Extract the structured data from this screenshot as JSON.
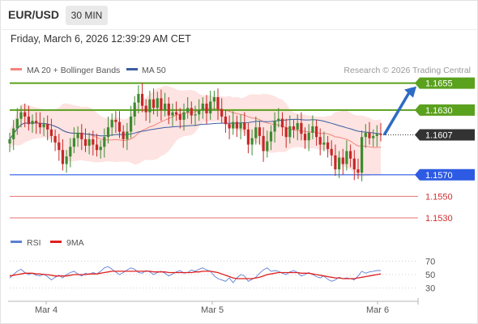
{
  "header": {
    "symbol": "EUR/USD",
    "interval": "30 MIN",
    "datetime": "Friday, March 6, 2026 12:39:29 AM CET"
  },
  "legend": {
    "bollinger_label": "MA 20 + Bollinger Bands",
    "ma50_label": "MA 50",
    "copyright": "Research © 2026 Trading Central",
    "bollinger_color": "#f4847b",
    "ma50_color": "#3a5ea3"
  },
  "rsi_legend": {
    "rsi_label": "RSI",
    "ma9_label": "9MA",
    "rsi_color": "#5b7fd4",
    "ma9_color": "#e02020"
  },
  "colors": {
    "up_candle": "#3d8b2f",
    "down_candle": "#c62828",
    "resistance": "#5aa11e",
    "pivot": "#2d5be3",
    "support": "#e57373",
    "last_price": "#333333",
    "band_fill": "#fde3e1",
    "arrow": "#2d6bc4"
  },
  "chart_data": [
    {
      "type": "candlestick",
      "y_range": [
        1.1518,
        1.1663
      ],
      "x_labels": [
        "Mar 4",
        "Mar 5",
        "Mar 6"
      ],
      "levels": [
        {
          "value": 1.1655,
          "label": "1.1655",
          "kind": "resistance"
        },
        {
          "value": 1.163,
          "label": "1.1630",
          "kind": "resistance"
        },
        {
          "value": 1.1607,
          "label": "1.1607",
          "kind": "last"
        },
        {
          "value": 1.157,
          "label": "1.1570",
          "kind": "pivot"
        },
        {
          "value": 1.155,
          "label": "1.1550",
          "kind": "support"
        },
        {
          "value": 1.153,
          "label": "1.1530",
          "kind": "support"
        }
      ],
      "arrow": {
        "from": 1.1608,
        "to": 1.1652
      },
      "closes": [
        1.1603,
        1.1613,
        1.1622,
        1.1628,
        1.1624,
        1.1617,
        1.162,
        1.1618,
        1.1614,
        1.1617,
        1.1612,
        1.1606,
        1.16,
        1.1593,
        1.158,
        1.1587,
        1.1596,
        1.1604,
        1.1609,
        1.1603,
        1.1597,
        1.1603,
        1.1598,
        1.1593,
        1.1596,
        1.1605,
        1.1614,
        1.1621,
        1.1619,
        1.161,
        1.1603,
        1.161,
        1.1624,
        1.1637,
        1.1645,
        1.1634,
        1.1628,
        1.164,
        1.1632,
        1.1641,
        1.163,
        1.1636,
        1.1625,
        1.1628,
        1.1626,
        1.1621,
        1.1628,
        1.1632,
        1.1625,
        1.1626,
        1.163,
        1.1636,
        1.1627,
        1.1638,
        1.1642,
        1.1631,
        1.1624,
        1.1617,
        1.1613,
        1.1619,
        1.1613,
        1.1618,
        1.1612,
        1.1598,
        1.1604,
        1.1614,
        1.1606,
        1.1592,
        1.1601,
        1.161,
        1.162,
        1.1622,
        1.1614,
        1.1605,
        1.1615,
        1.1612,
        1.1618,
        1.1608,
        1.1602,
        1.1609,
        1.1615,
        1.1605,
        1.1598,
        1.16,
        1.1594,
        1.1588,
        1.1575,
        1.1586,
        1.158,
        1.1592,
        1.1585,
        1.1575,
        1.1572,
        1.1605,
        1.1609,
        1.1604,
        1.1606,
        1.1608,
        1.1607
      ]
    },
    {
      "type": "line",
      "title": "RSI",
      "y_ticks": [
        70,
        50,
        30
      ],
      "y_range": [
        15,
        85
      ],
      "series": [
        {
          "name": "RSI",
          "values": [
            45,
            50,
            55,
            58,
            53,
            50,
            52,
            49,
            48,
            51,
            47,
            42,
            46,
            49,
            45,
            50,
            53,
            55,
            51,
            48,
            52,
            50,
            53,
            51,
            55,
            60,
            62,
            58,
            54,
            50,
            53,
            57,
            60,
            58,
            53,
            52,
            56,
            54,
            50,
            53,
            55,
            52,
            48,
            51,
            54,
            56,
            52,
            53,
            57,
            55,
            58,
            60,
            57,
            55,
            48,
            44,
            42,
            40,
            45,
            38,
            45,
            50,
            48,
            40,
            43,
            46,
            52,
            57,
            60,
            55,
            56,
            55,
            52,
            50,
            54,
            56,
            53,
            48,
            50,
            53,
            50,
            47,
            45,
            48,
            43,
            40,
            42,
            46,
            44,
            45,
            44,
            42,
            48,
            55,
            52,
            54,
            55,
            56,
            56
          ]
        },
        {
          "name": "9MA",
          "values": [
            48,
            49,
            50,
            51,
            52,
            52,
            52,
            51,
            51,
            50,
            50,
            49,
            48,
            48,
            48,
            48,
            49,
            50,
            50,
            50,
            50,
            51,
            51,
            51,
            52,
            53,
            54,
            55,
            55,
            55,
            55,
            55,
            55,
            55,
            55,
            55,
            55,
            55,
            54,
            54,
            54,
            54,
            53,
            53,
            53,
            53,
            53,
            53,
            53,
            54,
            54,
            55,
            55,
            55,
            54,
            53,
            51,
            49,
            47,
            45,
            44,
            44,
            44,
            44,
            44,
            45,
            46,
            48,
            50,
            51,
            52,
            53,
            53,
            53,
            53,
            53,
            53,
            52,
            52,
            52,
            51,
            50,
            49,
            48,
            47,
            46,
            45,
            45,
            44,
            44,
            44,
            44,
            45,
            46,
            47,
            48,
            49,
            50,
            51
          ]
        }
      ]
    }
  ]
}
